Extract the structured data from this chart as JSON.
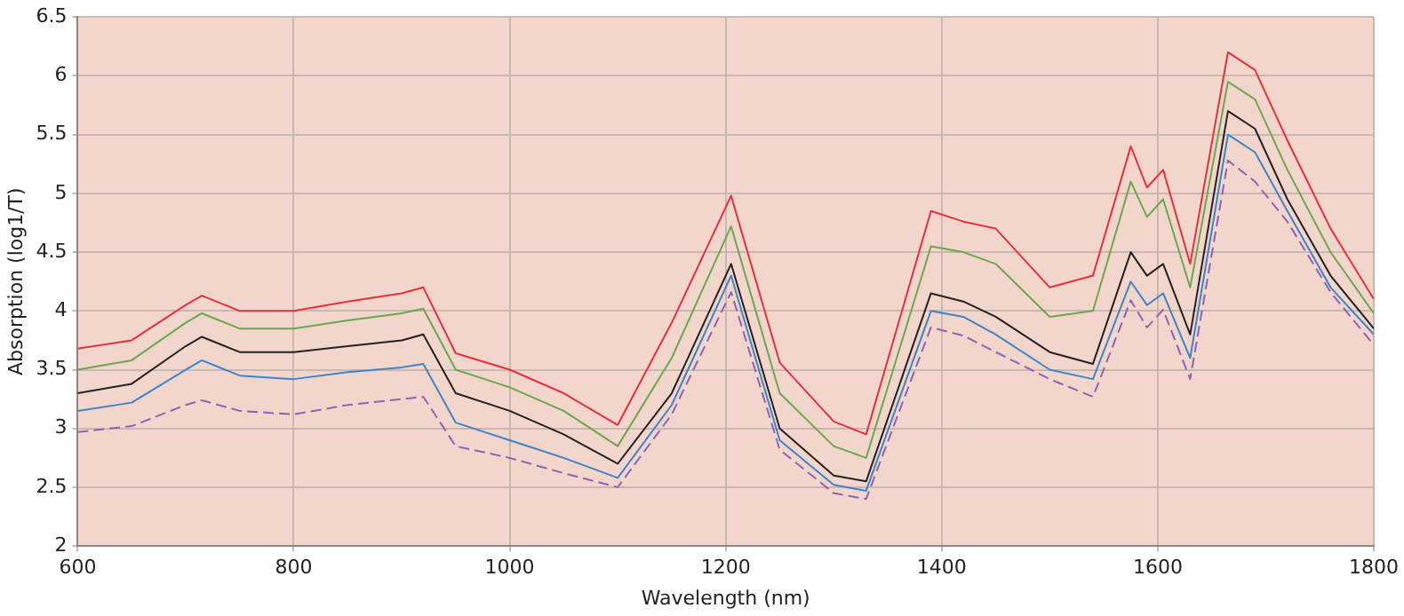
{
  "chart_data": {
    "type": "line",
    "xlabel": "Wavelength (nm)",
    "ylabel": "Absorption (log1/T)",
    "x": [
      600,
      650,
      700,
      715,
      750,
      800,
      850,
      900,
      920,
      950,
      1000,
      1050,
      1100,
      1150,
      1205,
      1250,
      1300,
      1330,
      1390,
      1420,
      1450,
      1500,
      1540,
      1575,
      1590,
      1605,
      1630,
      1665,
      1690,
      1720,
      1760,
      1800
    ],
    "series": [
      {
        "color": "#e8303a",
        "values": [
          3.68,
          3.75,
          4.05,
          4.13,
          4.0,
          4.0,
          4.08,
          4.15,
          4.2,
          3.64,
          3.5,
          3.3,
          3.03,
          3.9,
          4.98,
          3.56,
          3.06,
          2.95,
          4.85,
          4.76,
          4.7,
          4.2,
          4.3,
          5.4,
          5.05,
          5.2,
          4.4,
          6.2,
          6.05,
          5.45,
          4.7,
          4.1
        ]
      },
      {
        "color": "#6aa84f",
        "values": [
          3.5,
          3.58,
          3.9,
          3.98,
          3.85,
          3.85,
          3.92,
          3.98,
          4.02,
          3.5,
          3.35,
          3.15,
          2.85,
          3.6,
          4.72,
          3.3,
          2.85,
          2.75,
          4.55,
          4.5,
          4.4,
          3.95,
          4.0,
          5.1,
          4.8,
          4.95,
          4.2,
          5.95,
          5.8,
          5.2,
          4.5,
          3.98
        ]
      },
      {
        "color": "#222222",
        "values": [
          3.3,
          3.38,
          3.7,
          3.78,
          3.65,
          3.65,
          3.7,
          3.75,
          3.8,
          3.3,
          3.15,
          2.95,
          2.7,
          3.3,
          4.4,
          3.0,
          2.6,
          2.55,
          4.15,
          4.08,
          3.95,
          3.65,
          3.55,
          4.5,
          4.3,
          4.4,
          3.8,
          5.7,
          5.55,
          4.95,
          4.3,
          3.85
        ]
      },
      {
        "color": "#3d85c6",
        "values": [
          3.15,
          3.22,
          3.5,
          3.58,
          3.45,
          3.42,
          3.48,
          3.52,
          3.55,
          3.05,
          2.9,
          2.75,
          2.58,
          3.2,
          4.3,
          2.9,
          2.52,
          2.47,
          4.0,
          3.95,
          3.8,
          3.5,
          3.42,
          4.25,
          4.05,
          4.15,
          3.6,
          5.5,
          5.35,
          4.85,
          4.2,
          3.8
        ]
      },
      {
        "color": "#8e63b5",
        "line_style": "dashed",
        "values": [
          2.97,
          3.02,
          3.2,
          3.24,
          3.15,
          3.12,
          3.2,
          3.25,
          3.27,
          2.85,
          2.75,
          2.62,
          2.5,
          3.12,
          4.16,
          2.82,
          2.45,
          2.4,
          3.86,
          3.79,
          3.65,
          3.42,
          3.27,
          4.09,
          3.86,
          4.01,
          3.42,
          5.28,
          5.1,
          4.76,
          4.16,
          3.71
        ]
      }
    ],
    "xlim": [
      600,
      1800
    ],
    "xticks": [
      600,
      800,
      1000,
      1200,
      1400,
      1600,
      1800
    ],
    "ylim": [
      2,
      6.5
    ],
    "yticks": [
      2,
      2.5,
      3,
      3.5,
      4,
      4.5,
      5,
      5.5,
      6,
      6.5
    ],
    "grid": true,
    "legend": false,
    "marker": "none",
    "line_style": "solid"
  }
}
